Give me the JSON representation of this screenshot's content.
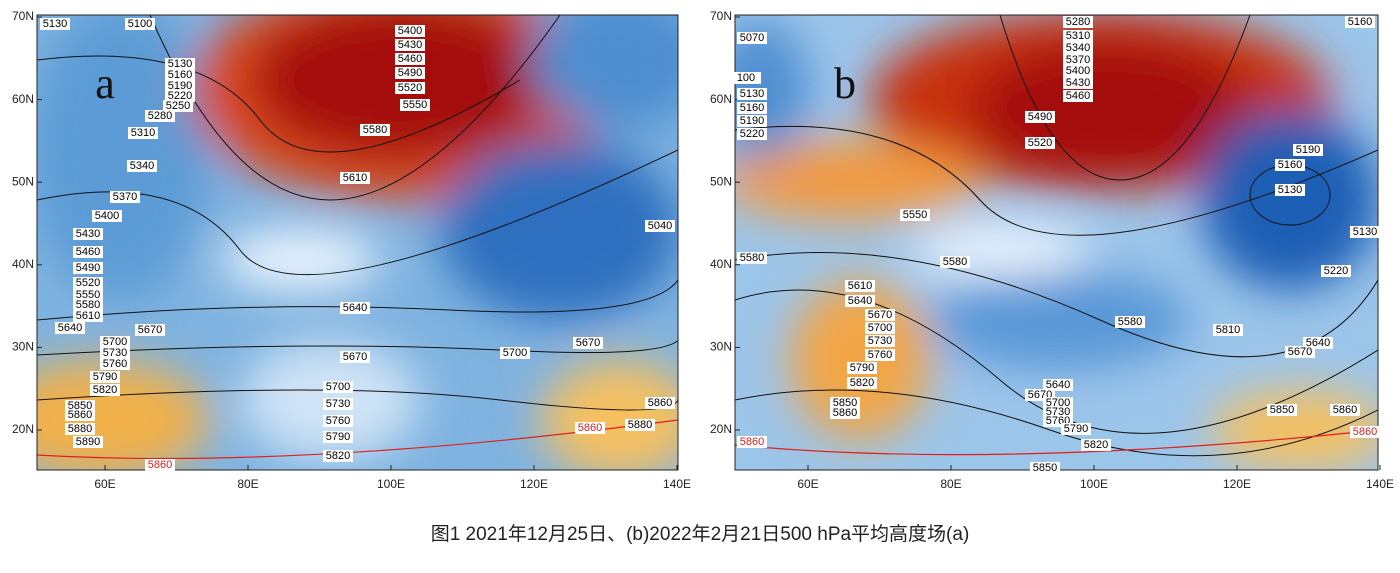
{
  "panels": [
    {
      "label": "a",
      "lat_labels": [
        "70N",
        "60N",
        "50N",
        "40N",
        "30N",
        "20N"
      ],
      "lon_labels": [
        "60E",
        "80E",
        "100E",
        "120E",
        "140E"
      ],
      "contour_labels": [
        "5130",
        "5100",
        "5400",
        "5430",
        "5460",
        "5490",
        "5520",
        "5550",
        "5130",
        "5160",
        "5190",
        "5220",
        "5250",
        "5280",
        "5310",
        "5580",
        "5340",
        "5610",
        "5370",
        "5400",
        "5430",
        "5460",
        "5490",
        "5520",
        "5550",
        "5580",
        "5610",
        "5640",
        "5670",
        "5700",
        "5730",
        "5760",
        "5790",
        "5820",
        "5850",
        "5860",
        "5880",
        "5890",
        "5640",
        "5670",
        "5700",
        "5730",
        "5760",
        "5790",
        "5820",
        "5700",
        "5670",
        "5040",
        "5860",
        "5880",
        "5860",
        "5860"
      ]
    },
    {
      "label": "b",
      "lat_labels": [
        "70N",
        "60N",
        "50N",
        "40N",
        "30N",
        "20N"
      ],
      "lon_labels": [
        "60E",
        "80E",
        "100E",
        "120E",
        "140E"
      ],
      "contour_labels": [
        "5070",
        "5160",
        "5280",
        "5310",
        "5340",
        "5370",
        "5400",
        "5430",
        "5460",
        "100",
        "5130",
        "5160",
        "5190",
        "5220",
        "5490",
        "5520",
        "5190",
        "5160",
        "5130",
        "5130",
        "5550",
        "5580",
        "5580",
        "5220",
        "5610",
        "5640",
        "5670",
        "5700",
        "5730",
        "5760",
        "5790",
        "5820",
        "5850",
        "5860",
        "5580",
        "5810",
        "5640",
        "5670",
        "5640",
        "5670",
        "5700",
        "5730",
        "5760",
        "5790",
        "5820",
        "5850",
        "5850",
        "5860",
        "5860",
        "5860"
      ]
    }
  ],
  "caption": "图1  2021年12月25日、(b)2022年2月21日500 hPa平均高度场(a)"
}
